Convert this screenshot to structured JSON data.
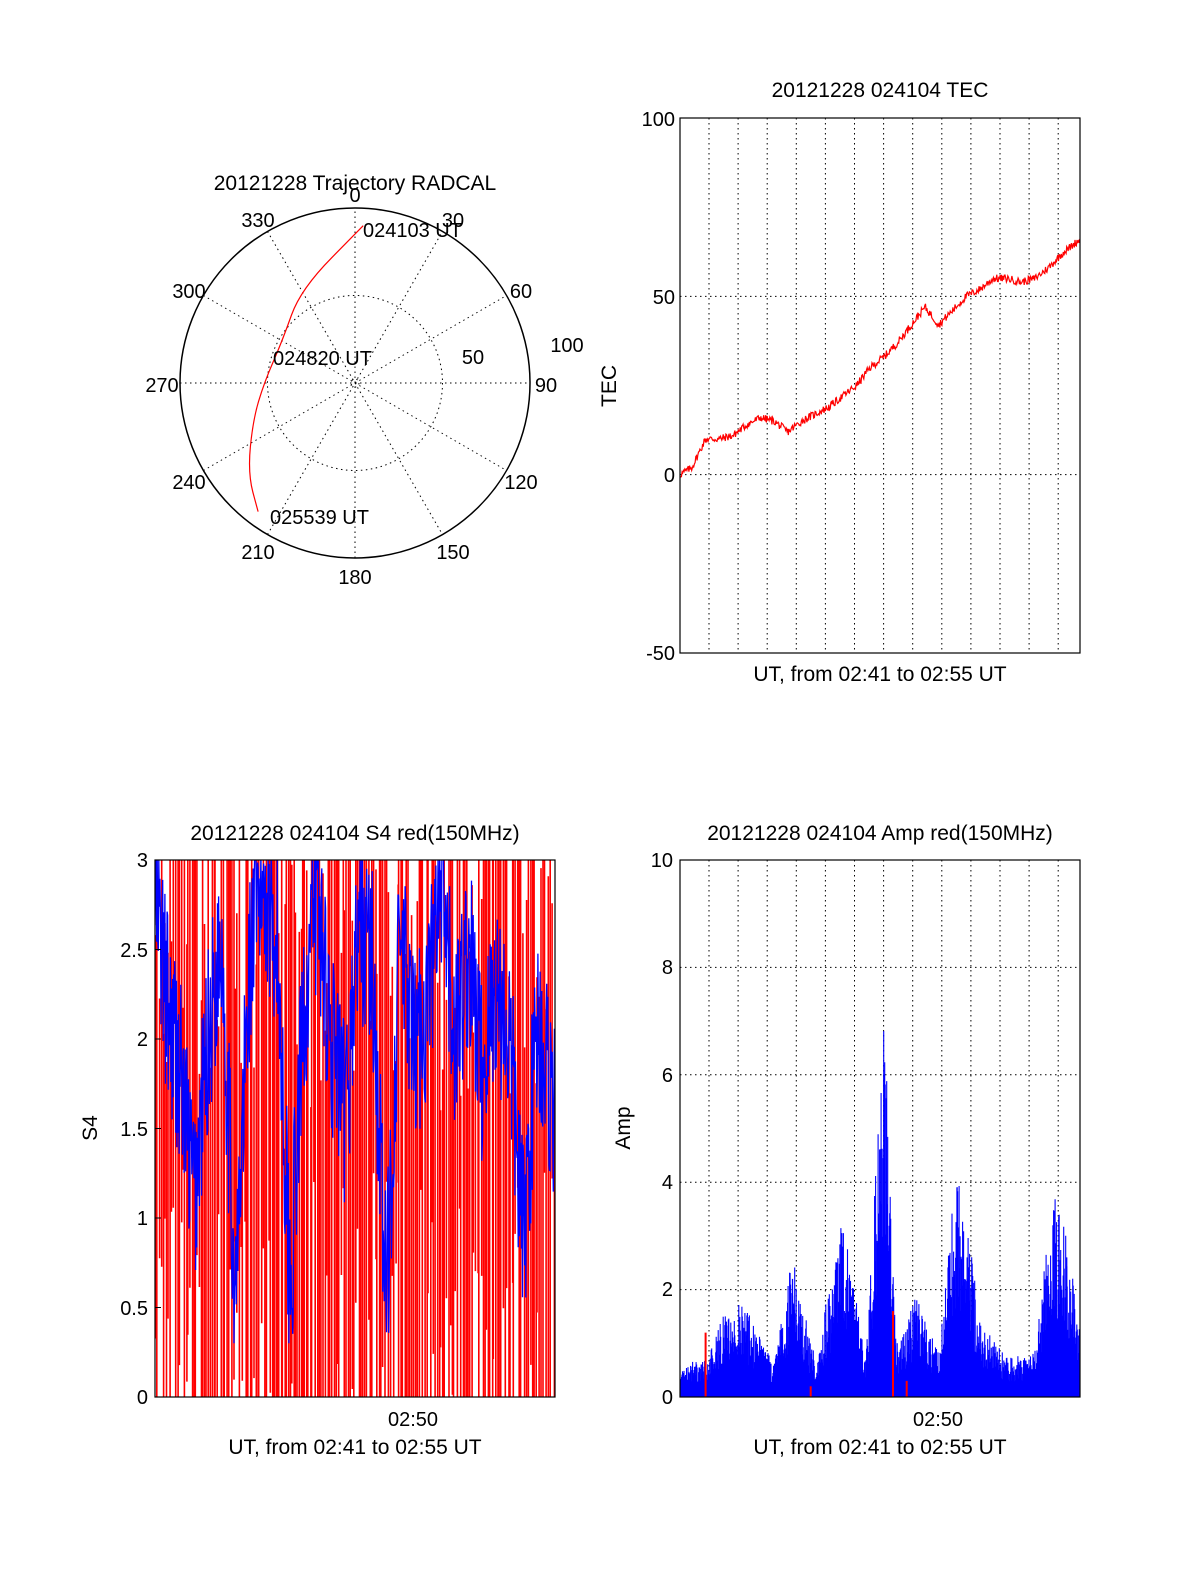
{
  "colors": {
    "red": "#ff0000",
    "blue": "#0000ff",
    "axis": "#000000"
  },
  "chart_data": [
    {
      "id": "trajectory",
      "type": "polar",
      "title": "20121228 Trajectory RADCAL",
      "angle_ticks": [
        "0",
        "30",
        "60",
        "90",
        "120",
        "150",
        "180",
        "210",
        "240",
        "270",
        "300",
        "330"
      ],
      "radius_ticks": [
        "50",
        "100"
      ],
      "rlim": [
        0,
        100
      ],
      "grid": true,
      "series": [
        {
          "color": "#ff0000",
          "points": [
            [
              3,
              90
            ],
            [
              330,
              62
            ],
            [
              300,
              48
            ],
            [
              270,
              52
            ],
            [
              250,
              62
            ],
            [
              230,
              80
            ],
            [
              217,
              92
            ]
          ]
        }
      ],
      "annotations": [
        {
          "text": "024103 UT",
          "azimuth": 3,
          "radius": 90
        },
        {
          "text": "024820 UT",
          "azimuth": 285,
          "radius": 45
        },
        {
          "text": "025539 UT",
          "azimuth": 217,
          "radius": 92
        }
      ]
    },
    {
      "id": "tec",
      "type": "line",
      "title": "20121228 024104 TEC",
      "xlabel": "UT, from 02:41 to 02:55 UT",
      "ylabel": "TEC",
      "xlim": [
        "02:41:04",
        "02:55:39"
      ],
      "ylim": [
        -50,
        100
      ],
      "yticks": [
        "-50",
        "0",
        "50",
        "100"
      ],
      "xtick_labels": [],
      "grid": true,
      "series": [
        {
          "color": "#ff0000",
          "x": [
            "02:41:04",
            "02:41:30",
            "02:42:00",
            "02:42:30",
            "02:43:00",
            "02:43:30",
            "02:44:00",
            "02:44:30",
            "02:45:00",
            "02:45:30",
            "02:46:00",
            "02:46:30",
            "02:47:00",
            "02:47:30",
            "02:48:00",
            "02:48:30",
            "02:49:00",
            "02:49:30",
            "02:50:00",
            "02:50:30",
            "02:51:00",
            "02:51:30",
            "02:52:00",
            "02:52:30",
            "02:53:00",
            "02:53:30",
            "02:54:00",
            "02:54:30",
            "02:55:00",
            "02:55:39"
          ],
          "y": [
            0,
            2,
            10,
            10,
            11,
            14,
            16,
            15,
            12,
            15,
            17,
            19,
            22,
            25,
            30,
            33,
            37,
            42,
            47,
            42,
            46,
            50,
            52,
            55,
            55,
            54,
            55,
            58,
            62,
            66
          ]
        }
      ]
    },
    {
      "id": "s4",
      "type": "line",
      "title": "20121228 024104 S4 red(150MHz)",
      "xlabel": "UT, from 02:41 to 02:55 UT",
      "ylabel": "S4",
      "xlim": [
        "02:41:04",
        "02:55:39"
      ],
      "ylim": [
        0,
        3
      ],
      "yticks": [
        "0",
        "0.5",
        "1",
        "1.5",
        "2",
        "2.5",
        "3"
      ],
      "xtick_labels": [
        "02:50"
      ],
      "grid": false,
      "series": [
        {
          "color": "#ff0000",
          "style": "dense-oscillation",
          "x": [
            "02:41:04",
            "02:55:39"
          ],
          "y": [
            0,
            3
          ]
        },
        {
          "color": "#0000ff",
          "x": [
            "02:41:04",
            "02:41:30",
            "02:42:00",
            "02:42:30",
            "02:43:00",
            "02:43:30",
            "02:44:00",
            "02:44:30",
            "02:45:00",
            "02:45:30",
            "02:46:00",
            "02:46:30",
            "02:47:00",
            "02:47:30",
            "02:48:00",
            "02:48:30",
            "02:49:00",
            "02:49:30",
            "02:50:00",
            "02:50:30",
            "02:51:00",
            "02:51:30",
            "02:52:00",
            "02:52:30",
            "02:53:00",
            "02:53:30",
            "02:54:00",
            "02:54:30",
            "02:55:00",
            "02:55:39"
          ],
          "y": [
            2.8,
            2.2,
            1.8,
            1.1,
            2.0,
            2.6,
            0.5,
            2.4,
            2.9,
            2.6,
            0.6,
            2.2,
            2.8,
            2.0,
            1.5,
            2.7,
            2.4,
            0.5,
            2.6,
            1.9,
            2.2,
            2.8,
            2.0,
            2.5,
            1.8,
            2.3,
            2.0,
            0.85,
            2.1,
            1.6
          ]
        }
      ]
    },
    {
      "id": "amp",
      "type": "line",
      "title": "20121228 024104 Amp red(150MHz)",
      "xlabel": "UT, from 02:41 to 02:55 UT",
      "ylabel": "Amp",
      "xlim": [
        "02:41:04",
        "02:55:39"
      ],
      "ylim": [
        0,
        10
      ],
      "yticks": [
        "0",
        "2",
        "4",
        "6",
        "8",
        "10"
      ],
      "xtick_labels": [
        "02:50"
      ],
      "grid": true,
      "series": [
        {
          "color": "#0000ff",
          "x": [
            "02:41:04",
            "02:42:00",
            "02:42:45",
            "02:43:20",
            "02:44:30",
            "02:45:10",
            "02:46:00",
            "02:47:00",
            "02:47:50",
            "02:48:30",
            "02:49:00",
            "02:49:40",
            "02:50:30",
            "02:51:10",
            "02:52:00",
            "02:53:00",
            "02:54:00",
            "02:54:40",
            "02:55:10",
            "02:55:39"
          ],
          "y": [
            0.5,
            0.6,
            1.4,
            1.5,
            0.5,
            2.2,
            0.6,
            2.8,
            0.6,
            6.0,
            0.7,
            1.6,
            0.7,
            3.9,
            1.2,
            0.6,
            0.7,
            3.2,
            2.6,
            1.0
          ]
        },
        {
          "color": "#ff0000",
          "x": [
            "02:42:00",
            "02:45:50",
            "02:48:50",
            "02:49:20"
          ],
          "y": [
            1.2,
            0.2,
            1.6,
            0.3
          ]
        }
      ]
    }
  ]
}
